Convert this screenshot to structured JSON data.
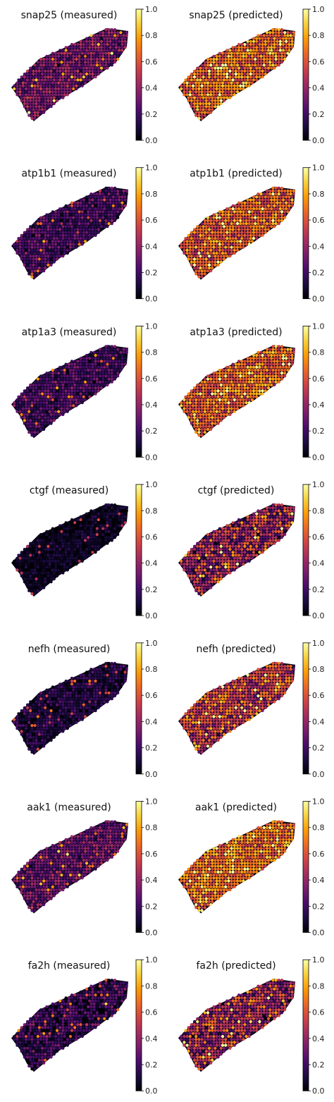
{
  "colormap": {
    "name": "inferno",
    "stops": [
      "#000004",
      "#1b0c41",
      "#4a0c6b",
      "#781c6d",
      "#a52c60",
      "#cf4446",
      "#ed6925",
      "#fb9b06",
      "#f7d13d",
      "#fcffa4"
    ]
  },
  "shared_colorbar": {
    "range": [
      0.0,
      1.0
    ],
    "tick_labels": [
      "1.0",
      "0.8",
      "0.6",
      "0.4",
      "0.2",
      "0.0"
    ]
  },
  "chart_data": [
    {
      "type": "scatter",
      "title": "snap25 (measured)",
      "mean_level": 0.33,
      "spread": 0.14,
      "colorbar_range": [
        0,
        1
      ]
    },
    {
      "type": "scatter",
      "title": "snap25 (predicted)",
      "mean_level": 0.68,
      "spread": 0.18,
      "colorbar_range": [
        0,
        1
      ]
    },
    {
      "type": "scatter",
      "title": "atp1b1 (measured)",
      "mean_level": 0.22,
      "spread": 0.12,
      "colorbar_range": [
        0,
        1
      ]
    },
    {
      "type": "scatter",
      "title": "atp1b1 (predicted)",
      "mean_level": 0.64,
      "spread": 0.18,
      "colorbar_range": [
        0,
        1
      ]
    },
    {
      "type": "scatter",
      "title": "atp1a3 (measured)",
      "mean_level": 0.22,
      "spread": 0.12,
      "colorbar_range": [
        0,
        1
      ]
    },
    {
      "type": "scatter",
      "title": "atp1a3 (predicted)",
      "mean_level": 0.66,
      "spread": 0.18,
      "colorbar_range": [
        0,
        1
      ]
    },
    {
      "type": "scatter",
      "title": "ctgf (measured)",
      "mean_level": 0.06,
      "spread": 0.07,
      "colorbar_range": [
        0,
        1
      ]
    },
    {
      "type": "scatter",
      "title": "ctgf (predicted)",
      "mean_level": 0.42,
      "spread": 0.25,
      "colorbar_range": [
        0,
        1
      ]
    },
    {
      "type": "scatter",
      "title": "nefh (measured)",
      "mean_level": 0.12,
      "spread": 0.1,
      "colorbar_range": [
        0,
        1
      ]
    },
    {
      "type": "scatter",
      "title": "nefh (predicted)",
      "mean_level": 0.55,
      "spread": 0.22,
      "colorbar_range": [
        0,
        1
      ]
    },
    {
      "type": "scatter",
      "title": "aak1 (measured)",
      "mean_level": 0.3,
      "spread": 0.13,
      "colorbar_range": [
        0,
        1
      ]
    },
    {
      "type": "scatter",
      "title": "aak1 (predicted)",
      "mean_level": 0.7,
      "spread": 0.17,
      "colorbar_range": [
        0,
        1
      ]
    },
    {
      "type": "scatter",
      "title": "fa2h (measured)",
      "mean_level": 0.18,
      "spread": 0.14,
      "colorbar_range": [
        0,
        1
      ]
    },
    {
      "type": "scatter",
      "title": "fa2h (predicted)",
      "mean_level": 0.46,
      "spread": 0.25,
      "colorbar_range": [
        0,
        1
      ]
    }
  ]
}
